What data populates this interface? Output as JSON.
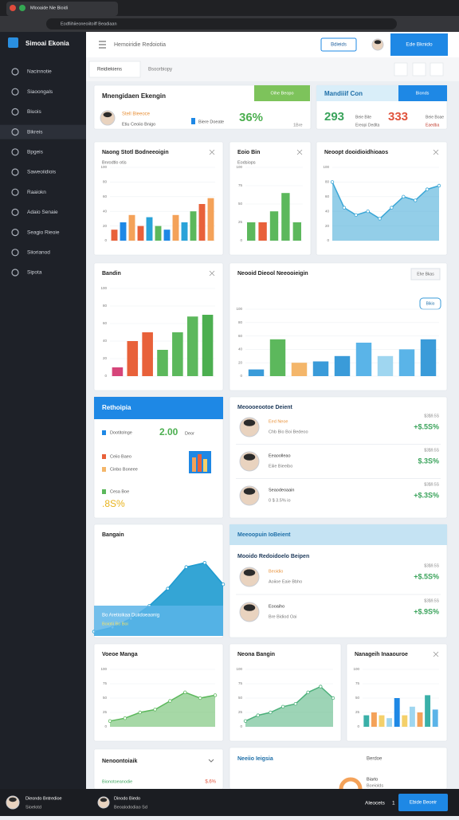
{
  "browser": {
    "tab_title": "Mlooaide Nie Bioidi",
    "address": "Eodfiihiieoneoiitoiff Beadiaan"
  },
  "sidebar": {
    "brand": "Simoai Ekonia",
    "active": 3,
    "items": [
      "Nacinnotie",
      "Siaoongals",
      "Biuois",
      "Bikreis",
      "Bpgeis",
      "Saweoiidiois",
      "Raaiokn",
      "Adaio Senaie",
      "Seagio Rieoie",
      "Siiorianod",
      "Sipota"
    ]
  },
  "header": {
    "title": "Hemoiridie Redoiotia",
    "button": "Bdieids",
    "primary_button": "Ede Bknido"
  },
  "tabs": [
    "Reidiekiens",
    "Bsoorbiopy"
  ],
  "summary": {
    "title": "Mnengidaen Ekengin",
    "button": "Oihe Beopo",
    "person_name": "Stell Bieeoce",
    "person_sub": "Etiu Ceoiio Bnigo",
    "legend": "Biere Doeate",
    "value": "36%",
    "note": "1Bre"
  },
  "summary2": {
    "title": "Mandiiif Con",
    "button": "Bionds",
    "value_a": "293",
    "sub_a": "Beie Bite",
    "sub_a2": "Ereopi Dedlta",
    "value_b": "333",
    "sub_b": "Beie Boae",
    "sub_b2": "Eaedba"
  },
  "charts": [
    {
      "type": "bar",
      "title": "Naong Stotl Bodneeoigin",
      "subtitle": "Bnrodtlo otis",
      "values": [
        15,
        25,
        35,
        20,
        32,
        20,
        15,
        35,
        25,
        40,
        50,
        58
      ],
      "colors": [
        "#e8613a",
        "#1e88e5",
        "#f4a259",
        "#e8613a",
        "#29a3d9",
        "#5cb85c",
        "#1e88e5",
        "#f4a259",
        "#29a3d9",
        "#5cb85c",
        "#e8613a",
        "#f4a259"
      ],
      "ylim": [
        0,
        100
      ],
      "yticks": [
        0,
        20,
        40,
        60,
        80,
        100
      ]
    },
    {
      "type": "bar",
      "title": "Eoio Bin",
      "subtitle": "Eodsiops",
      "values": [
        25,
        25,
        40,
        65,
        25
      ],
      "colors": [
        "#5cb85c",
        "#e8613a",
        "#5cb85c",
        "#5cb85c",
        "#5cb85c"
      ],
      "ylim": [
        0,
        100
      ],
      "yticks": [
        0,
        25,
        50,
        75,
        100
      ]
    },
    {
      "type": "area",
      "title": "Neoopt dooidioidhioaos",
      "values": [
        80,
        45,
        35,
        40,
        30,
        45,
        60,
        55,
        70,
        75
      ],
      "color": "#3aa6d6",
      "ylim": [
        0,
        100
      ],
      "yticks": [
        0,
        20,
        40,
        60,
        80,
        100
      ]
    },
    {
      "type": "bar",
      "title": "Bandin",
      "values": [
        10,
        40,
        50,
        30,
        50,
        68,
        70
      ],
      "colors": [
        "#d6457a",
        "#e8613a",
        "#e8613a",
        "#5cb85c",
        "#5cb85c",
        "#5cb85c",
        "#4caf50"
      ],
      "ylim": [
        0,
        100
      ],
      "yticks": [
        0,
        20,
        40,
        60,
        80,
        100
      ]
    },
    {
      "type": "bar",
      "title": "Neooid Dieool Neeooieigin",
      "button": "Ehe Bkas",
      "tag": "Bikio",
      "values": [
        10,
        55,
        20,
        22,
        30,
        50,
        30,
        40,
        55
      ],
      "colors": [
        "#3a9bd9",
        "#5cb85c",
        "#f4b66a",
        "#3a9bd9",
        "#3a9bd9",
        "#5ab4e8",
        "#9fd6f0",
        "#5ab4e8",
        "#3a9bd9"
      ],
      "ylim": [
        0,
        100
      ],
      "yticks": [
        0,
        20,
        40,
        60,
        80,
        100
      ]
    },
    {
      "type": "area",
      "title": "Bangain",
      "values": [
        5,
        10,
        20,
        35,
        55,
        80,
        85,
        60
      ],
      "color": "#1e9bd0",
      "ylim": [
        0,
        100
      ],
      "yticks": [],
      "footer": "Bo Aretioikaa Duiidoeaonig",
      "footer_sub": "Boiotii Bo Boi"
    },
    {
      "type": "area",
      "title": "Voeoe Manga",
      "values": [
        10,
        15,
        25,
        30,
        45,
        60,
        50,
        55
      ],
      "color": "#5cb85c",
      "ylim": [
        0,
        100
      ],
      "yticks": [
        0,
        25,
        50,
        75,
        100
      ]
    },
    {
      "type": "area",
      "title": "Neona Bangin",
      "values": [
        10,
        20,
        25,
        35,
        40,
        60,
        70,
        50
      ],
      "color": "#4cb07a",
      "ylim": [
        0,
        100
      ],
      "yticks": [
        0,
        25,
        50,
        75,
        100
      ]
    },
    {
      "type": "bar",
      "title": "Nanageih Inaaouroe",
      "values": [
        20,
        25,
        20,
        15,
        50,
        20,
        35,
        25,
        55,
        30
      ],
      "colors": [
        "#3ab0a8",
        "#f4a259",
        "#f4d06a",
        "#9fd6f0",
        "#1e88e5",
        "#f4d06a",
        "#9fd6f0",
        "#f4a259",
        "#3ab0a8",
        "#5ab4e8"
      ],
      "ylim": [
        0,
        100
      ],
      "yticks": [
        0,
        25,
        50,
        75,
        100
      ]
    }
  ],
  "metrics": {
    "title": "Rethoipia",
    "items": [
      {
        "label": "Dootitolnge",
        "value": "2.00",
        "unit": "Deor"
      },
      {
        "label": "Ceiio Baeo"
      },
      {
        "label": "Cinbo Boneee"
      },
      {
        "label": "Cesa Boe",
        "value": ".8S%"
      }
    ]
  },
  "people": {
    "title": "Meoooeootoe Deient",
    "rows": [
      {
        "name": "Eed Neoe",
        "sub": "Chb Bio Boi Bedeoo",
        "tag": "$3$9.5S",
        "change": "+$.5S%"
      },
      {
        "name": "Eeaoolleao",
        "sub": "Eiiie Bieeibo",
        "tag": "$3$9.5S",
        "change": "$.3S%"
      },
      {
        "name": "Seaodeoaain",
        "sub": "0 $ 3.5% io",
        "tag": "$3$9.5S",
        "change": "+$.3S%"
      }
    ]
  },
  "people2": {
    "title": "Meeoopuin IoBeient",
    "subtitle": "Mooido Redoidoelo Beipen",
    "rows": [
      {
        "name": "Beoidio",
        "sub": "Aoiioe Eaie Bbho",
        "tag": "$3$9.5S",
        "change": "+$.5S%"
      },
      {
        "name": "Eooaiho",
        "sub": "Bre Bidiod Oai",
        "tag": "$3$9.5S",
        "change": "+$.9S%"
      }
    ]
  },
  "footer_cards": {
    "left_title": "Nenoontoiaik",
    "left_sub": "Bionotoeanodie",
    "left_value": "$.6%",
    "right_title": "Neeiio Ieigsia",
    "right_tag": "Berdoe",
    "right_sub": "Biarto",
    "right_sub2": "Boeiolds"
  },
  "bottom": {
    "user": "Dieondo Bntredioe",
    "user_sub": "Sioelotd",
    "user2": "Dinodo Biedo",
    "user2_sub": "Beoalododiao Sd",
    "label": "Aleocets",
    "count": "1",
    "button": "Ebide Beoeir"
  }
}
